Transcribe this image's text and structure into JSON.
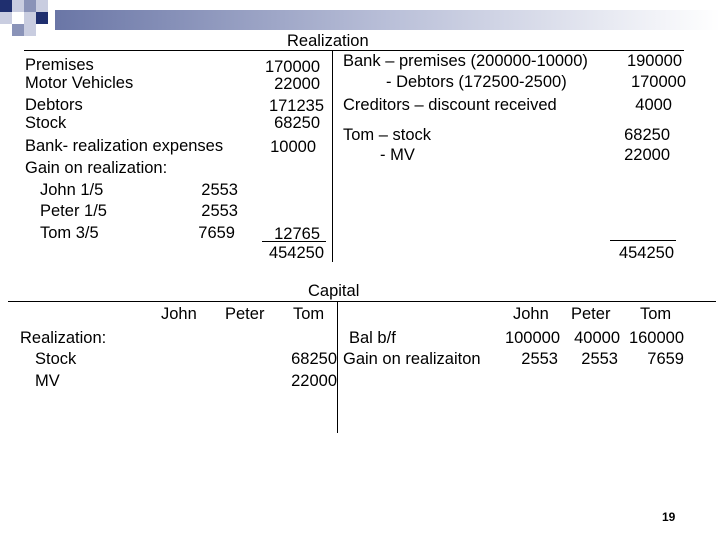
{
  "realization": {
    "title": "Realization",
    "debit": [
      {
        "label": "Premises",
        "amount": "170000"
      },
      {
        "label": "Motor Vehicles",
        "amount": "22000"
      },
      {
        "label": "Debtors",
        "amount": "171235"
      },
      {
        "label": "Stock",
        "amount": "68250"
      },
      {
        "label": "Bank- realization expenses",
        "amount": "10000"
      },
      {
        "label": "Gain on realization:"
      },
      {
        "label": "John 1/5",
        "sub": "2553"
      },
      {
        "label": "Peter 1/5",
        "sub": "2553"
      },
      {
        "label": "Tom  3/5",
        "sub": "7659",
        "amount": "12765"
      }
    ],
    "debit_total": "454250",
    "credit": [
      {
        "label": "Bank – premises (200000-10000)",
        "amount": "190000"
      },
      {
        "label": "- Debtors (172500-2500)",
        "amount": "170000"
      },
      {
        "label": "Creditors – discount received",
        "amount": "4000"
      },
      {
        "label": "Tom – stock",
        "amount": "68250"
      },
      {
        "label": "- MV",
        "amount": "22000"
      }
    ],
    "credit_total": "454250"
  },
  "capital": {
    "title": "Capital",
    "left_headers": [
      "John",
      "Peter",
      "Tom"
    ],
    "right_headers": [
      "John",
      "Peter",
      "Tom"
    ],
    "debit": [
      {
        "label": "Realization:"
      },
      {
        "label": "Stock",
        "tom": "68250"
      },
      {
        "label": "MV",
        "tom": "22000"
      }
    ],
    "credit": [
      {
        "label": "Bal b/f",
        "john": "100000",
        "peter": "40000",
        "tom": "160000"
      },
      {
        "label": "Gain on realizaiton",
        "john": "2553",
        "peter": "2553",
        "tom": "7659"
      }
    ]
  },
  "page_number": "19",
  "colors": {
    "decor_dark": "#1f2f6f",
    "decor_mid": "#8a93b8",
    "decor_light": "#c9cde0"
  }
}
